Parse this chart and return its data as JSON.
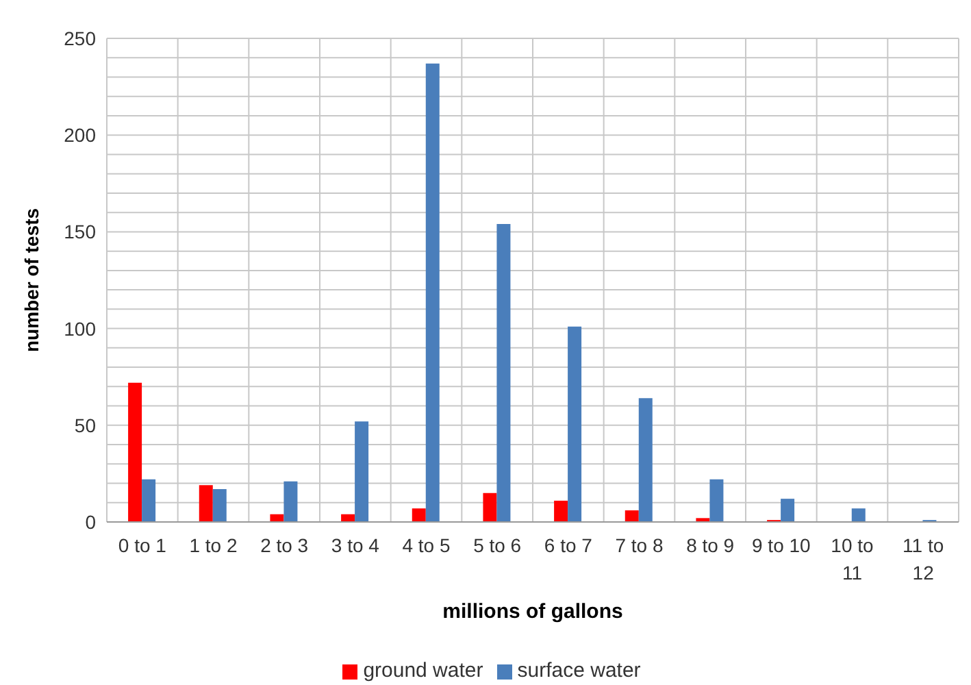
{
  "chart_data": {
    "type": "bar",
    "xlabel": "millions of gallons",
    "ylabel": "number of tests",
    "categories": [
      "0 to 1",
      "1 to 2",
      "2 to 3",
      "3 to 4",
      "4 to 5",
      "5 to 6",
      "6 to 7",
      "7 to 8",
      "8 to 9",
      "9 to 10",
      "10 to 11",
      "11 to 12"
    ],
    "series": [
      {
        "name": "ground water",
        "color": "#ff0000",
        "values": [
          72,
          19,
          4,
          4,
          7,
          15,
          11,
          6,
          2,
          1,
          0,
          0
        ]
      },
      {
        "name": "surface water",
        "color": "#4a7ebb",
        "values": [
          22,
          17,
          21,
          52,
          237,
          154,
          101,
          64,
          22,
          12,
          7,
          1
        ]
      }
    ],
    "ylim": [
      0,
      250
    ],
    "yticks": [
      0,
      {
        "value": 10,
        "label": null
      },
      {
        "value": 20,
        "label": null
      },
      {
        "value": 30,
        "label": null
      },
      {
        "value": 40,
        "label": null
      },
      50,
      {
        "value": 60,
        "label": null
      },
      {
        "value": 70,
        "label": null
      },
      {
        "value": 80,
        "label": null
      },
      {
        "value": 90,
        "label": null
      },
      100,
      {
        "value": 110,
        "label": null
      },
      {
        "value": 120,
        "label": null
      },
      {
        "value": 130,
        "label": null
      },
      {
        "value": 140,
        "label": null
      },
      150,
      {
        "value": 160,
        "label": null
      },
      {
        "value": 170,
        "label": null
      },
      {
        "value": 180,
        "label": null
      },
      {
        "value": 190,
        "label": null
      },
      200,
      {
        "value": 210,
        "label": null
      },
      {
        "value": 220,
        "label": null
      },
      {
        "value": 230,
        "label": null
      },
      {
        "value": 240,
        "label": null
      },
      250
    ],
    "grid": true,
    "legend": "bottom"
  }
}
